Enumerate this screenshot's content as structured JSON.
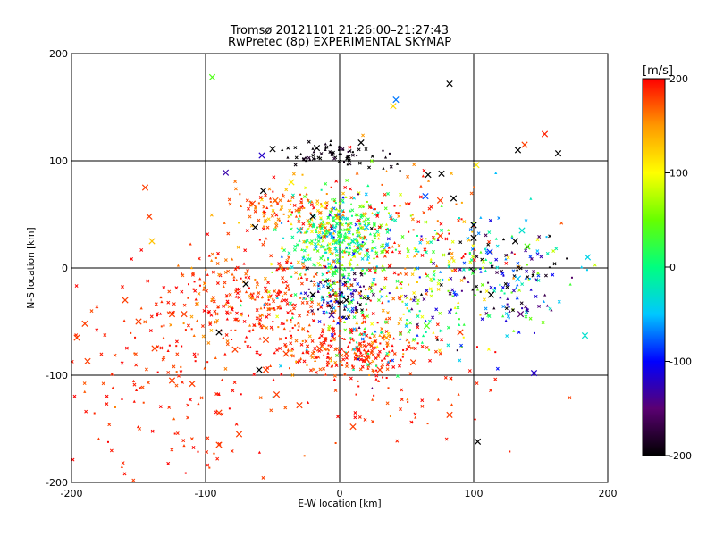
{
  "chart_data": {
    "type": "scatter",
    "title": "Tromsø 20121101 21:26:00–21:27:43",
    "subtitle": "RwPretec (8p) EXPERIMENTAL SKYMAP",
    "xlabel": "E-W location [km]",
    "ylabel": "N-S location [km]",
    "xlim": [
      -200,
      200
    ],
    "ylim": [
      -200,
      200
    ],
    "xticks": [
      -200,
      -100,
      0,
      100,
      200
    ],
    "yticks": [
      -200,
      -100,
      0,
      100,
      200
    ],
    "grid_values": [
      -100,
      0,
      100
    ],
    "grid": true,
    "colorbar": {
      "label": "[m/s]",
      "min": -200,
      "max": 200,
      "ticks": [
        200,
        100,
        0,
        -100,
        -200
      ],
      "colors": [
        "#000000",
        "#5a0072",
        "#0000ff",
        "#00c8ff",
        "#00ff80",
        "#66ff00",
        "#ffff00",
        "#ff9900",
        "#ff0000"
      ]
    },
    "large_markers": [
      {
        "x": -95,
        "y": 178,
        "v": 40
      },
      {
        "x": 82,
        "y": 172,
        "v": -200
      },
      {
        "x": 42,
        "y": 157,
        "v": -70
      },
      {
        "x": 40,
        "y": 151,
        "v": 120
      },
      {
        "x": 153,
        "y": 125,
        "v": 190
      },
      {
        "x": 138,
        "y": 115,
        "v": 180
      },
      {
        "x": 133,
        "y": 110,
        "v": -200
      },
      {
        "x": 163,
        "y": 107,
        "v": -200
      },
      {
        "x": -50,
        "y": 111,
        "v": -200
      },
      {
        "x": -58,
        "y": 105,
        "v": -120
      },
      {
        "x": -17,
        "y": 112,
        "v": -200
      },
      {
        "x": 16,
        "y": 117,
        "v": -200
      },
      {
        "x": 102,
        "y": 96,
        "v": 110
      },
      {
        "x": -145,
        "y": 75,
        "v": 180
      },
      {
        "x": -142,
        "y": 48,
        "v": 180
      },
      {
        "x": -140,
        "y": 25,
        "v": 130
      },
      {
        "x": -85,
        "y": 89,
        "v": -130
      },
      {
        "x": -65,
        "y": 60,
        "v": 180
      },
      {
        "x": -57,
        "y": 72,
        "v": -200
      },
      {
        "x": -48,
        "y": 63,
        "v": 170
      },
      {
        "x": -63,
        "y": 38,
        "v": -200
      },
      {
        "x": -36,
        "y": 80,
        "v": 110
      },
      {
        "x": -30,
        "y": 35,
        "v": -30
      },
      {
        "x": -20,
        "y": 48,
        "v": -200
      },
      {
        "x": 10,
        "y": 25,
        "v": -20
      },
      {
        "x": 20,
        "y": 38,
        "v": -50
      },
      {
        "x": 64,
        "y": 67,
        "v": -80
      },
      {
        "x": 66,
        "y": 87,
        "v": -200
      },
      {
        "x": 76,
        "y": 88,
        "v": -200
      },
      {
        "x": 75,
        "y": 63,
        "v": 180
      },
      {
        "x": 75,
        "y": 30,
        "v": 180
      },
      {
        "x": 85,
        "y": 65,
        "v": -200
      },
      {
        "x": 100,
        "y": 40,
        "v": -200
      },
      {
        "x": 100,
        "y": 28,
        "v": -200
      },
      {
        "x": 136,
        "y": 35,
        "v": -30
      },
      {
        "x": 140,
        "y": 20,
        "v": 40
      },
      {
        "x": 131,
        "y": 25,
        "v": -200
      },
      {
        "x": 112,
        "y": 15,
        "v": -90
      },
      {
        "x": 185,
        "y": 10,
        "v": -40
      },
      {
        "x": 133,
        "y": -10,
        "v": -50
      },
      {
        "x": 113,
        "y": -25,
        "v": -200
      },
      {
        "x": 135,
        "y": -43,
        "v": -150
      },
      {
        "x": -70,
        "y": -15,
        "v": -200
      },
      {
        "x": -20,
        "y": -25,
        "v": -200
      },
      {
        "x": 5,
        "y": -30,
        "v": -200
      },
      {
        "x": -6,
        "y": -44,
        "v": -130
      },
      {
        "x": -150,
        "y": -50,
        "v": 180
      },
      {
        "x": -160,
        "y": -30,
        "v": 180
      },
      {
        "x": -190,
        "y": -52,
        "v": 180
      },
      {
        "x": -196,
        "y": -65,
        "v": 180
      },
      {
        "x": -188,
        "y": -87,
        "v": 180
      },
      {
        "x": -138,
        "y": -75,
        "v": 180
      },
      {
        "x": -125,
        "y": -43,
        "v": 180
      },
      {
        "x": -116,
        "y": -43,
        "v": 180
      },
      {
        "x": -125,
        "y": -105,
        "v": 180
      },
      {
        "x": -110,
        "y": -108,
        "v": 180
      },
      {
        "x": -90,
        "y": -60,
        "v": -200
      },
      {
        "x": -78,
        "y": -76,
        "v": 180
      },
      {
        "x": -55,
        "y": -67,
        "v": 180
      },
      {
        "x": -40,
        "y": -80,
        "v": 180
      },
      {
        "x": -15,
        "y": -75,
        "v": 180
      },
      {
        "x": 5,
        "y": -80,
        "v": 180
      },
      {
        "x": 20,
        "y": -85,
        "v": 180
      },
      {
        "x": 35,
        "y": -65,
        "v": 150
      },
      {
        "x": 55,
        "y": -88,
        "v": 180
      },
      {
        "x": 65,
        "y": -54,
        "v": 40
      },
      {
        "x": 90,
        "y": -60,
        "v": 180
      },
      {
        "x": 145,
        "y": -98,
        "v": -120
      },
      {
        "x": 183,
        "y": -63,
        "v": -30
      },
      {
        "x": -90,
        "y": -135,
        "v": 180
      },
      {
        "x": -90,
        "y": -165,
        "v": 180
      },
      {
        "x": -75,
        "y": -155,
        "v": 180
      },
      {
        "x": -55,
        "y": -95,
        "v": 180
      },
      {
        "x": -47,
        "y": -118,
        "v": 180
      },
      {
        "x": -30,
        "y": -128,
        "v": 180
      },
      {
        "x": 10,
        "y": -148,
        "v": 180
      },
      {
        "x": 82,
        "y": -137,
        "v": 180
      },
      {
        "x": 103,
        "y": -162,
        "v": -200
      },
      {
        "x": -60,
        "y": -95,
        "v": -200
      },
      {
        "x": 30,
        "y": -95,
        "v": 180
      }
    ],
    "clusters": [
      {
        "cx": 0,
        "cy": 25,
        "sx": 18,
        "sy": 22,
        "n": 420,
        "v": 25,
        "vs": 55
      },
      {
        "cx": -40,
        "cy": 55,
        "sx": 18,
        "sy": 12,
        "n": 110,
        "v": 170,
        "vs": 30
      },
      {
        "cx": 0,
        "cy": -25,
        "sx": 12,
        "sy": 10,
        "n": 110,
        "v": -150,
        "vs": 60
      },
      {
        "cx": 10,
        "cy": -75,
        "sx": 25,
        "sy": 14,
        "n": 240,
        "v": 185,
        "vs": 20
      },
      {
        "cx": -60,
        "cy": -30,
        "sx": 35,
        "sy": 25,
        "n": 320,
        "v": 185,
        "vs": 20
      },
      {
        "cx": 40,
        "cy": -40,
        "sx": 40,
        "sy": 30,
        "n": 220,
        "v": 30,
        "vs": 90
      },
      {
        "cx": 125,
        "cy": -10,
        "sx": 25,
        "sy": 22,
        "n": 150,
        "v": -110,
        "vs": 90
      },
      {
        "cx": -130,
        "cy": -110,
        "sx": 45,
        "sy": 55,
        "n": 170,
        "v": 190,
        "vs": 12
      },
      {
        "cx": 40,
        "cy": 40,
        "sx": 40,
        "sy": 30,
        "n": 110,
        "v": 180,
        "vs": 30
      },
      {
        "cx": -5,
        "cy": 105,
        "sx": 20,
        "sy": 6,
        "n": 70,
        "v": -195,
        "vs": 10
      },
      {
        "cx": 90,
        "cy": 20,
        "sx": 40,
        "sy": 25,
        "n": 80,
        "v": 60,
        "vs": 120
      },
      {
        "cx": 40,
        "cy": -120,
        "sx": 50,
        "sy": 30,
        "n": 60,
        "v": 190,
        "vs": 12
      }
    ]
  }
}
